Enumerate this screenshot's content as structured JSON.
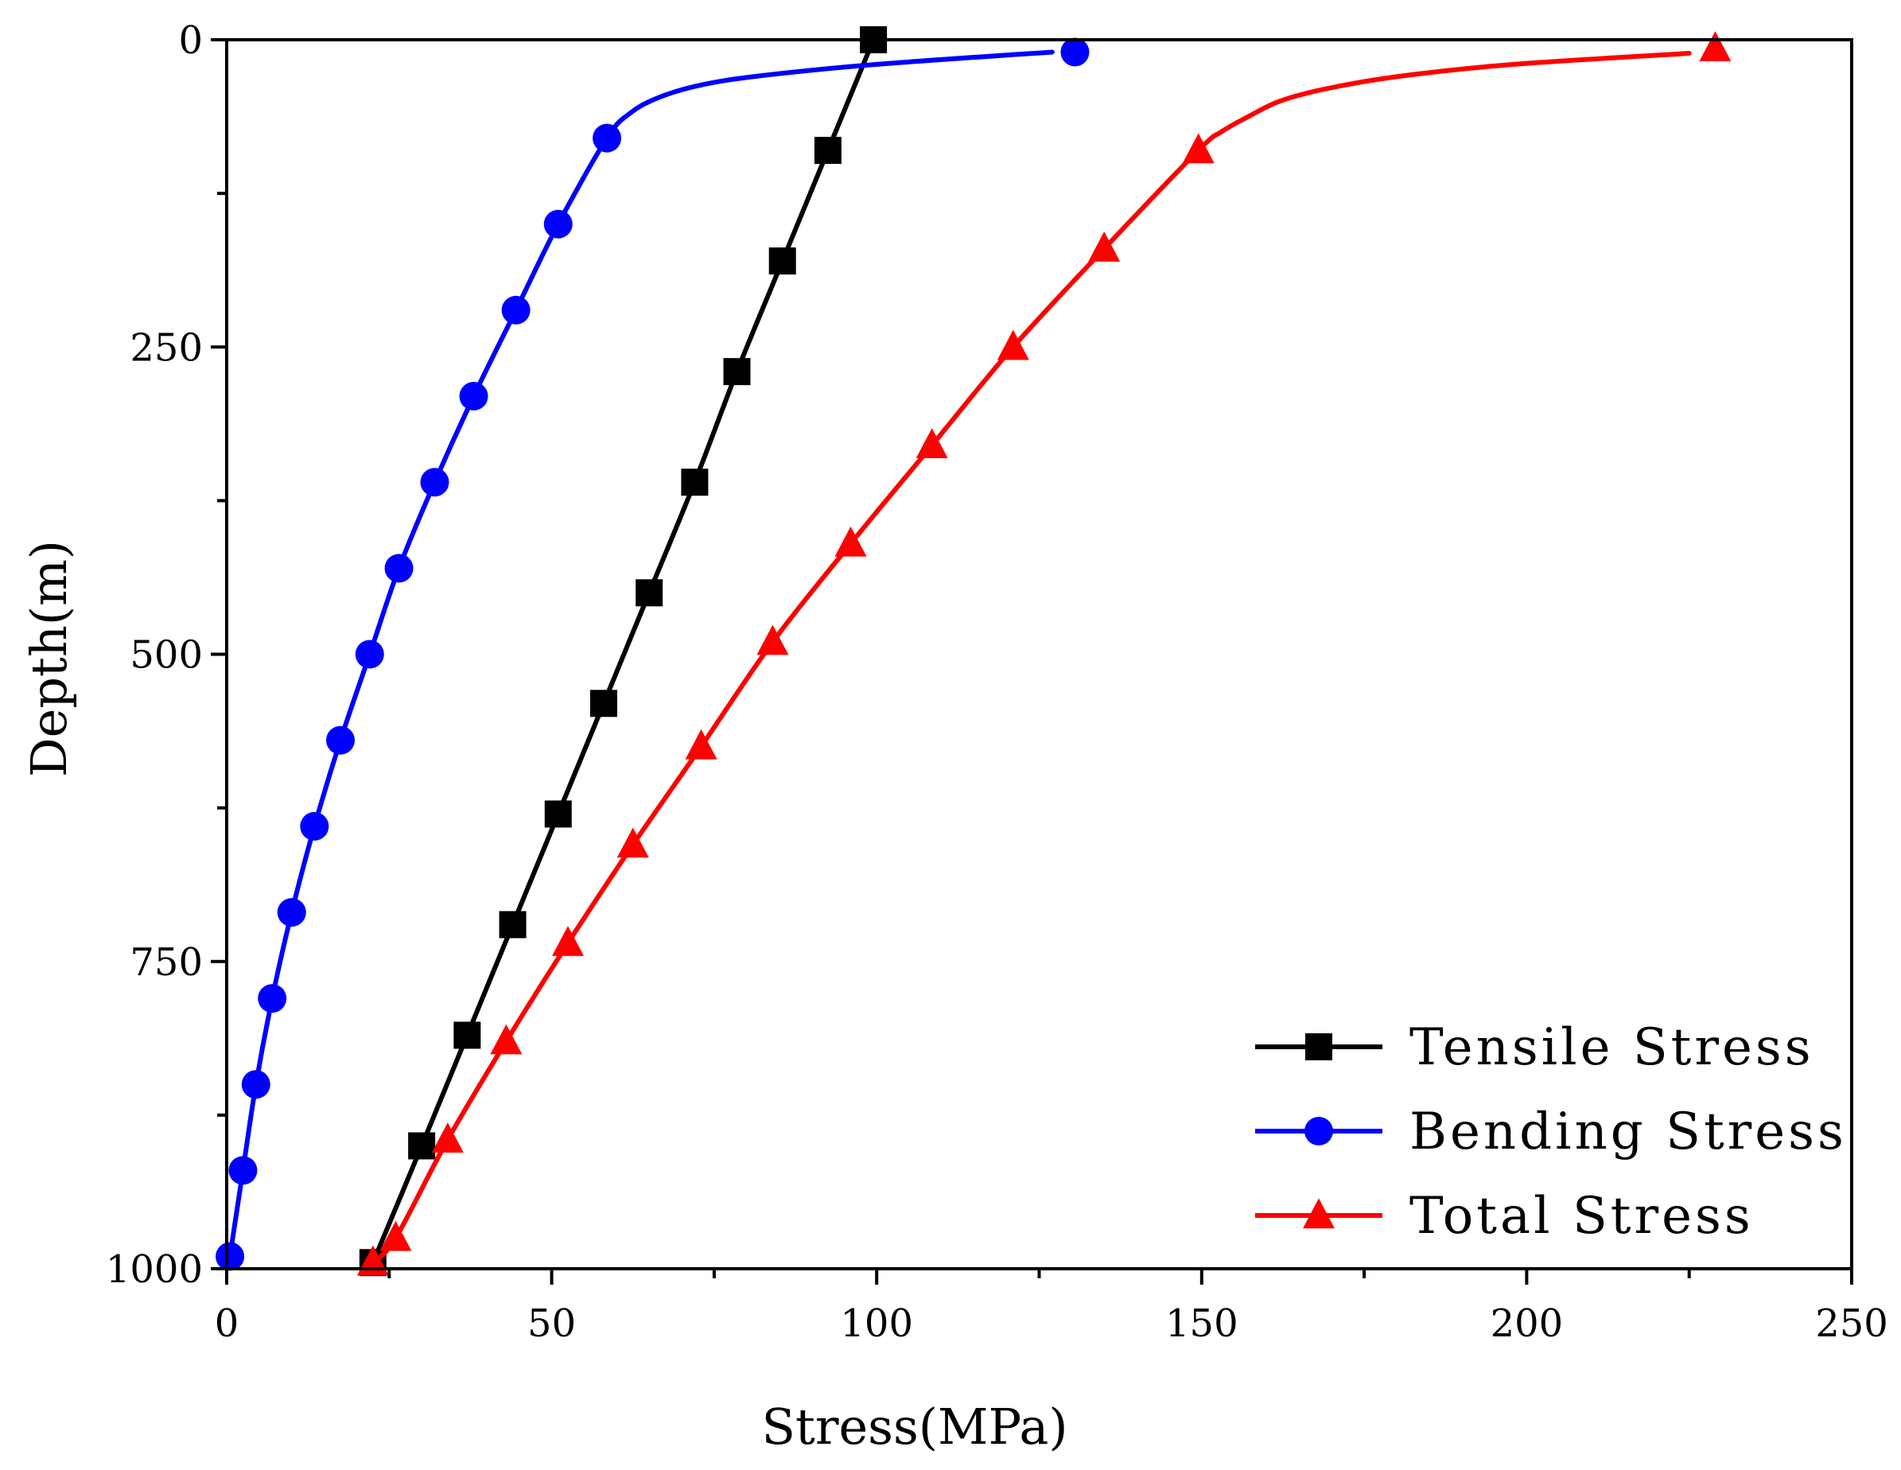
{
  "chart_data": {
    "type": "line",
    "title": "",
    "xlabel": "Stress(MPa)",
    "ylabel": "Depth(m)",
    "xlim": [
      0,
      250
    ],
    "ylim": [
      1000,
      0
    ],
    "x_ticks": [
      0,
      50,
      100,
      150,
      200,
      250
    ],
    "y_ticks": [
      0,
      250,
      500,
      750,
      1000
    ],
    "x_tick_labels": [
      "0",
      "50",
      "100",
      "150",
      "200",
      "250"
    ],
    "y_tick_labels": [
      "0",
      "250",
      "500",
      "750",
      "1000"
    ],
    "grid": false,
    "legend_position": "bottom-right",
    "series": [
      {
        "name": "Tensile Stress",
        "color": "#000000",
        "marker": "square",
        "points": [
          [
            22.5,
            995
          ],
          [
            30,
            900
          ],
          [
            37,
            810
          ],
          [
            44,
            720
          ],
          [
            51,
            630
          ],
          [
            58,
            540
          ],
          [
            65,
            450
          ],
          [
            72,
            360
          ],
          [
            78.5,
            270
          ],
          [
            85.5,
            180
          ],
          [
            92.5,
            90
          ],
          [
            99.5,
            0
          ]
        ],
        "curve": [
          [
            22.5,
            995
          ],
          [
            30,
            900
          ],
          [
            37,
            810
          ],
          [
            44,
            720
          ],
          [
            51,
            630
          ],
          [
            58,
            540
          ],
          [
            65,
            450
          ],
          [
            72,
            360
          ],
          [
            78.5,
            270
          ],
          [
            85.5,
            180
          ],
          [
            92.5,
            90
          ],
          [
            99.5,
            0
          ]
        ]
      },
      {
        "name": "Bending Stress",
        "color": "#0000ff",
        "marker": "circle",
        "points": [
          [
            0.5,
            990
          ],
          [
            2.5,
            920
          ],
          [
            4.5,
            850
          ],
          [
            7,
            780
          ],
          [
            10,
            710
          ],
          [
            13.5,
            640
          ],
          [
            17.5,
            570
          ],
          [
            22,
            500
          ],
          [
            26.5,
            430
          ],
          [
            32,
            360
          ],
          [
            38,
            290
          ],
          [
            44.5,
            220
          ],
          [
            51,
            150
          ],
          [
            58.5,
            80
          ],
          [
            130.5,
            10
          ]
        ],
        "curve": [
          [
            0.5,
            990
          ],
          [
            2.5,
            920
          ],
          [
            4.5,
            850
          ],
          [
            7,
            780
          ],
          [
            10,
            710
          ],
          [
            13.5,
            640
          ],
          [
            17.5,
            570
          ],
          [
            22,
            500
          ],
          [
            26.5,
            430
          ],
          [
            32,
            360
          ],
          [
            38,
            290
          ],
          [
            44.5,
            220
          ],
          [
            51,
            150
          ],
          [
            58.5,
            80
          ],
          [
            62,
            60
          ],
          [
            66,
            48
          ],
          [
            72,
            38
          ],
          [
            81,
            30
          ],
          [
            100,
            20
          ],
          [
            127,
            10
          ]
        ]
      },
      {
        "name": "Total Stress",
        "color": "#ff0000",
        "marker": "triangle",
        "points": [
          [
            22.5,
            995
          ],
          [
            26,
            975
          ],
          [
            34,
            895
          ],
          [
            43,
            815
          ],
          [
            52.5,
            735
          ],
          [
            62.5,
            655
          ],
          [
            73,
            575
          ],
          [
            84,
            490
          ],
          [
            96,
            410
          ],
          [
            108.5,
            330
          ],
          [
            121,
            250
          ],
          [
            135,
            170
          ],
          [
            149.5,
            90
          ],
          [
            229,
            7
          ]
        ],
        "curve": [
          [
            22.5,
            995
          ],
          [
            26,
            975
          ],
          [
            34,
            895
          ],
          [
            43,
            815
          ],
          [
            52.5,
            735
          ],
          [
            62.5,
            655
          ],
          [
            73,
            575
          ],
          [
            84,
            490
          ],
          [
            96,
            410
          ],
          [
            108.5,
            330
          ],
          [
            121,
            250
          ],
          [
            135,
            170
          ],
          [
            149.5,
            90
          ],
          [
            153,
            75
          ],
          [
            157,
            63
          ],
          [
            162,
            50
          ],
          [
            169,
            40
          ],
          [
            180,
            30
          ],
          [
            198,
            20
          ],
          [
            225,
            11
          ]
        ]
      }
    ]
  }
}
